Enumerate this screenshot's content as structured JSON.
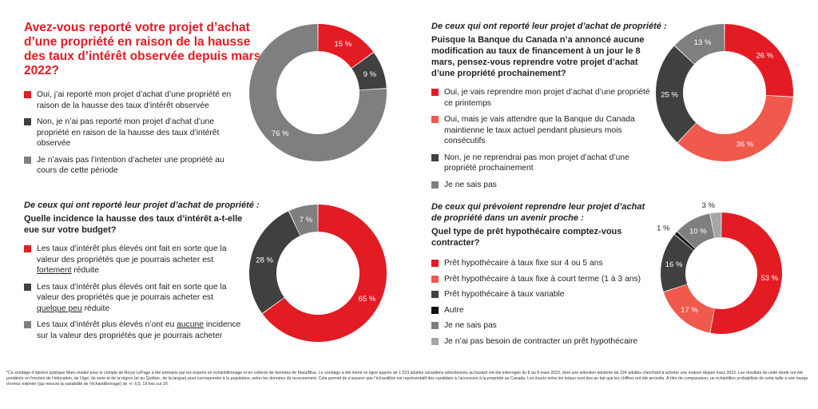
{
  "colors": {
    "red": "#e31b23",
    "orange": "#ef5a4c",
    "dark": "#404040",
    "black": "#111111",
    "gray": "#7f7f7f",
    "light": "#a6a6a6"
  },
  "panel1": {
    "title": "Avez-vous reporté votre projet d’achat d’une propriété en raison de la hausse des taux d’intérêt observée depuis mars 2022?",
    "legend": [
      "Oui, j’ai reporté mon projet d’achat d’une propriété en raison de la hausse des taux d’intérêt observée",
      "Non, je n’ai pas reporté mon projet d’achat d’une propriété en raison de la hausse des taux d’intérêt observée",
      "Je n’avais pas l’intention d’acheter une propriété au cours de cette période"
    ]
  },
  "panel2": {
    "subtitle": "De ceux qui ont reporté leur projet d’achat de propriété :",
    "question": "Puisque la Banque du Canada n’a annoncé aucune modification au taux de financement à un jour le 8 mars, pensez-vous reprendre votre projet d’achat d’une propriété prochainement?",
    "legend": [
      "Oui, je vais reprendre mon projet d’achat d’une propriété ce printemps",
      "Oui, mais je vais attendre que la Banque du Canada maintienne le taux actuel pendant plusieurs mois consécutifs",
      "Non, je ne reprendrai pas mon projet d’achat d’une propriété prochainement",
      "Je ne sais pas"
    ]
  },
  "panel3": {
    "subtitle": "De ceux qui ont reporté leur projet d’achat de propriété :",
    "question": "Quelle incidence la hausse des taux d’intérêt a-t-elle eue sur votre budget?",
    "legend": [
      {
        "before": "Les taux d’intérêt plus élevés ont fait en sorte que la valeur des propriétés que je pourrais acheter est ",
        "underlined": "fortement",
        "after": " réduite"
      },
      {
        "before": "Les taux d’intérêt plus élevés ont fait en sorte que la valeur des propriétés que je pourrais acheter est ",
        "underlined": "quelque peu",
        "after": " réduite"
      },
      {
        "before": "Les taux d’intérêt plus élevés n’ont eu ",
        "underlined": "aucune",
        "after": " incidence sur la valeur des propriétés que je pourrais acheter"
      }
    ]
  },
  "panel4": {
    "subtitle": "De ceux qui prévoient reprendre leur projet d’achat de propriété dans un avenir proche :",
    "question": "Quel type de prêt hypothécaire comptez-vous contracter?",
    "legend": [
      "Prêt hypothécaire à taux fixe sur 4 ou 5 ans",
      "Prêt hypothécaire à taux fixe à court terme (1 à 3 ans)",
      "Prêt hypothécaire à taux variable",
      "Autre",
      "Je ne sais pas",
      "Je n’ai pas besoin de contracter un prêt hypothécaire"
    ]
  },
  "chart_data": [
    {
      "type": "pie",
      "donut": true,
      "categories": [
        "Oui, j’ai reporté",
        "Non, je n’ai pas reporté",
        "Je n’avais pas l’intention"
      ],
      "values": [
        15,
        9,
        76
      ],
      "labels": [
        "15 %",
        "9 %",
        "76 %"
      ],
      "colors": [
        "#e31b23",
        "#404040",
        "#7f7f7f"
      ]
    },
    {
      "type": "pie",
      "donut": true,
      "categories": [
        "Oui, ce printemps",
        "Oui, mais je vais attendre",
        "Non",
        "Je ne sais pas"
      ],
      "values": [
        26,
        36,
        25,
        13
      ],
      "labels": [
        "26 %",
        "36 %",
        "25 %",
        "13 %"
      ],
      "colors": [
        "#e31b23",
        "#ef5a4c",
        "#404040",
        "#7f7f7f"
      ]
    },
    {
      "type": "pie",
      "donut": true,
      "categories": [
        "fortement réduite",
        "quelque peu réduite",
        "aucune incidence"
      ],
      "values": [
        65,
        28,
        7
      ],
      "labels": [
        "65 %",
        "28 %",
        "7 %"
      ],
      "colors": [
        "#e31b23",
        "#404040",
        "#7f7f7f"
      ]
    },
    {
      "type": "pie",
      "donut": true,
      "categories": [
        "Taux fixe 4 ou 5 ans",
        "Taux fixe court terme",
        "Taux variable",
        "Autre",
        "Je ne sais pas",
        "Pas besoin"
      ],
      "values": [
        53,
        17,
        16,
        1,
        10,
        3
      ],
      "labels": [
        "53 %",
        "17 %",
        "16 %",
        "1 %",
        "10 %",
        "3 %"
      ],
      "colors": [
        "#e31b23",
        "#ef5a4c",
        "#404040",
        "#111111",
        "#7f7f7f",
        "#a6a6a6"
      ]
    }
  ],
  "footnote": "*Ce sondage d’opinion publique Maru réalisé pour le compte de Royal LePage a été entrepris par les experts en échantillonnage et en collecte de données de Maru/Blue. Le sondage a été mené en ligne auprès de 1 523 adultes canadiens sélectionnés au hasard ont été interrogés du 8 au 9 mars 2023, dont une sélection aléatoire de 224 adultes cherchant à acheter une maison depuis mars 2022. Les résultats de cette étude ont été pondérés en fonction de l’éducation, de l’âge, du sexe et de la région (et au Québec, de la langue) pour correspondre à la population, selon les données du recensement. Cela permet de s’assurer que l’échantillon est représentatif des candidats à l’accession à la propriété au Canada. Les écarts entre les totaux sont dus au fait que les chiffres ont été arrondis. À titre de comparaison, un échantillon probabiliste de cette taille a une marge d’erreur estimée (qui mesure la variabilité de l’échantillonnage) de +/- 6,5, 19 fois sur 20."
}
